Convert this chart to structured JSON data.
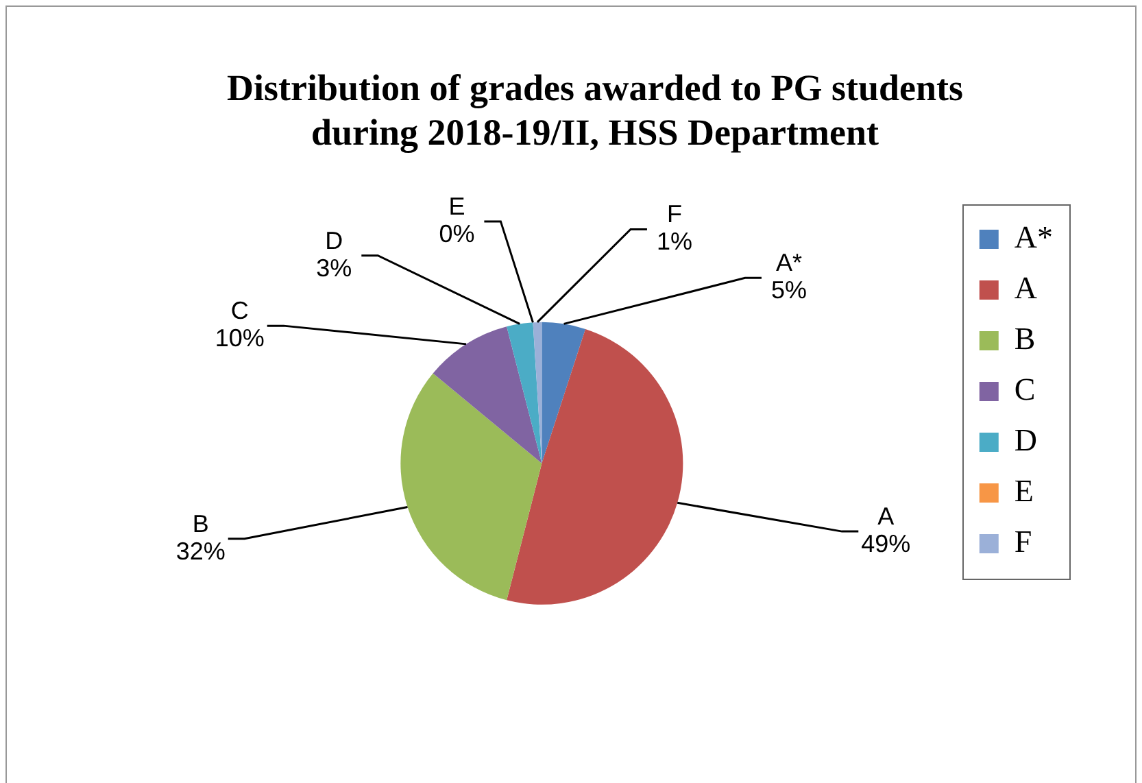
{
  "chart_data": {
    "type": "pie",
    "title": "Distribution of grades awarded to PG students during 2018-19/II, HSS Department",
    "categories": [
      "A*",
      "A",
      "B",
      "C",
      "D",
      "E",
      "F"
    ],
    "values": [
      5,
      49,
      32,
      10,
      3,
      0,
      1
    ],
    "colors": [
      "#4f81bd",
      "#c0504d",
      "#9bbb59",
      "#8064a2",
      "#4bacc6",
      "#f79646",
      "#9bb0d8"
    ],
    "value_labels": [
      "5%",
      "49%",
      "32%",
      "10%",
      "3%",
      "0%",
      "1%"
    ],
    "legend": "right"
  }
}
